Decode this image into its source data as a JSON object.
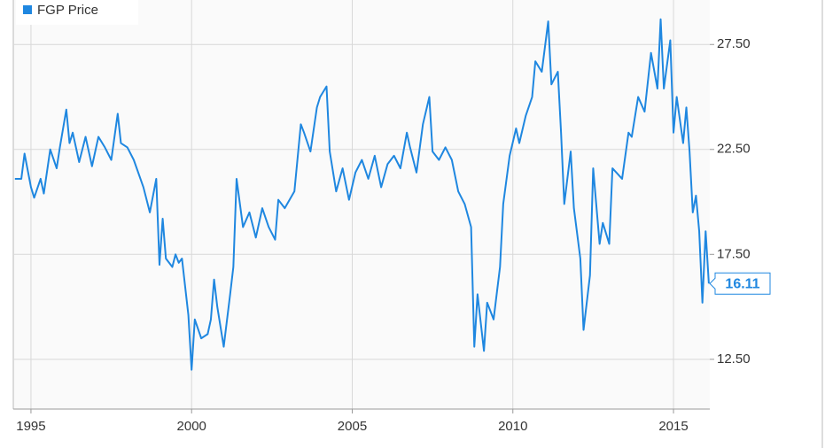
{
  "chart_data": {
    "type": "line",
    "x": [
      1994.5,
      1994.7,
      1994.8,
      1995.0,
      1995.1,
      1995.3,
      1995.4,
      1995.6,
      1995.8,
      1995.9,
      1996.1,
      1996.2,
      1996.3,
      1996.5,
      1996.7,
      1996.9,
      1997.1,
      1997.3,
      1997.5,
      1997.7,
      1997.8,
      1998.0,
      1998.2,
      1998.5,
      1998.6,
      1998.7,
      1998.9,
      1999.0,
      1999.1,
      1999.2,
      1999.4,
      1999.5,
      1999.6,
      1999.7,
      1999.9,
      2000.0,
      2000.1,
      2000.3,
      2000.5,
      2000.6,
      2000.7,
      2000.8,
      2001.0,
      2001.2,
      2001.3,
      2001.4,
      2001.6,
      2001.8,
      2002.0,
      2002.2,
      2002.4,
      2002.6,
      2002.7,
      2002.9,
      2003.2,
      2003.4,
      2003.5,
      2003.7,
      2003.9,
      2004.0,
      2004.2,
      2004.3,
      2004.5,
      2004.7,
      2004.9,
      2005.1,
      2005.3,
      2005.5,
      2005.7,
      2005.9,
      2006.1,
      2006.3,
      2006.5,
      2006.7,
      2006.8,
      2007.0,
      2007.2,
      2007.4,
      2007.5,
      2007.7,
      2007.9,
      2008.1,
      2008.3,
      2008.5,
      2008.7,
      2008.8,
      2008.9,
      2009.1,
      2009.2,
      2009.4,
      2009.6,
      2009.7,
      2009.9,
      2010.1,
      2010.2,
      2010.4,
      2010.6,
      2010.7,
      2010.9,
      2011.1,
      2011.2,
      2011.4,
      2011.5,
      2011.6,
      2011.8,
      2011.9,
      2012.1,
      2012.2,
      2012.4,
      2012.5,
      2012.7,
      2012.8,
      2013.0,
      2013.1,
      2013.4,
      2013.6,
      2013.7,
      2013.9,
      2014.1,
      2014.3,
      2014.5,
      2014.6,
      2014.7,
      2014.9,
      2015.0,
      2015.1,
      2015.3,
      2015.4,
      2015.5,
      2015.6,
      2015.7,
      2015.8,
      2015.9,
      2016.0,
      2016.1
    ],
    "series": [
      {
        "name": "FGP Price",
        "color": "#1f87e0",
        "values": [
          21.1,
          21.1,
          22.3,
          20.7,
          20.2,
          21.1,
          20.4,
          22.5,
          21.6,
          22.6,
          24.4,
          22.8,
          23.3,
          21.9,
          23.1,
          21.7,
          23.1,
          22.6,
          22.0,
          24.2,
          22.8,
          22.6,
          22.0,
          20.7,
          20.1,
          19.5,
          21.1,
          17.0,
          19.2,
          17.3,
          16.9,
          17.5,
          17.1,
          17.3,
          14.6,
          12.0,
          14.4,
          13.5,
          13.7,
          14.4,
          16.3,
          15.0,
          13.1,
          15.6,
          16.9,
          21.1,
          18.8,
          19.5,
          18.3,
          19.7,
          18.8,
          18.2,
          20.1,
          19.7,
          20.5,
          23.7,
          23.3,
          22.4,
          24.5,
          25.0,
          25.5,
          22.4,
          20.5,
          21.6,
          20.1,
          21.4,
          22.0,
          21.1,
          22.2,
          20.7,
          21.8,
          22.2,
          21.6,
          23.3,
          22.6,
          21.4,
          23.7,
          25.0,
          22.4,
          22.0,
          22.6,
          22.0,
          20.5,
          19.9,
          18.8,
          13.1,
          15.6,
          12.9,
          15.2,
          14.4,
          16.9,
          19.9,
          22.2,
          23.5,
          22.8,
          24.1,
          25.0,
          26.7,
          26.2,
          28.6,
          25.6,
          26.2,
          23.3,
          19.9,
          22.4,
          19.7,
          17.3,
          13.9,
          16.5,
          21.6,
          18.0,
          19.0,
          18.0,
          21.6,
          21.1,
          23.3,
          23.1,
          25.0,
          24.3,
          27.1,
          25.4,
          28.7,
          25.4,
          27.7,
          23.3,
          25.0,
          22.8,
          24.5,
          22.4,
          19.5,
          20.3,
          18.6,
          15.2,
          18.6,
          16.11
        ]
      }
    ],
    "xlim": [
      1994.45,
      2016.13
    ],
    "ylim": [
      10.13,
      29.62
    ],
    "xticks": [
      1995,
      2000,
      2005,
      2010,
      2015
    ],
    "yticks": [
      {
        "value": 12.5,
        "label": "12.50"
      },
      {
        "value": 17.5,
        "label": "17.50"
      },
      {
        "value": 22.5,
        "label": "22.50"
      },
      {
        "value": 27.5,
        "label": "27.50"
      }
    ],
    "grid": true,
    "legend": "top-left"
  }
}
